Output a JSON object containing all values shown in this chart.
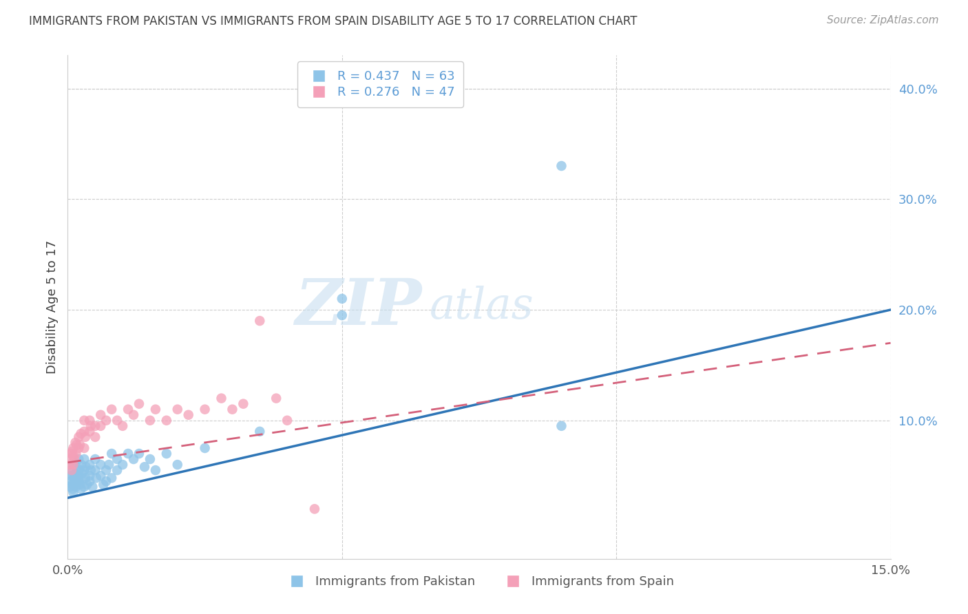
{
  "title": "IMMIGRANTS FROM PAKISTAN VS IMMIGRANTS FROM SPAIN DISABILITY AGE 5 TO 17 CORRELATION CHART",
  "source": "Source: ZipAtlas.com",
  "ylabel": "Disability Age 5 to 17",
  "y_tick_labels": [
    "10.0%",
    "20.0%",
    "30.0%",
    "40.0%"
  ],
  "y_tick_values": [
    0.1,
    0.2,
    0.3,
    0.4
  ],
  "xlim": [
    0.0,
    0.15
  ],
  "ylim": [
    -0.025,
    0.43
  ],
  "pakistan_color": "#8ec4e8",
  "spain_color": "#f4a0b8",
  "pakistan_R": 0.437,
  "pakistan_N": 63,
  "spain_R": 0.276,
  "spain_N": 47,
  "legend_label_pakistan": "Immigrants from Pakistan",
  "legend_label_spain": "Immigrants from Spain",
  "pakistan_line_x0": 0.0,
  "pakistan_line_y0": 0.03,
  "pakistan_line_x1": 0.15,
  "pakistan_line_y1": 0.2,
  "spain_line_x0": 0.0,
  "spain_line_y0": 0.062,
  "spain_line_x1": 0.15,
  "spain_line_y1": 0.17,
  "pakistan_scatter_x": [
    0.0004,
    0.0005,
    0.0006,
    0.0007,
    0.0008,
    0.0009,
    0.001,
    0.001,
    0.001,
    0.0012,
    0.0013,
    0.0014,
    0.0015,
    0.0016,
    0.0017,
    0.0018,
    0.002,
    0.002,
    0.002,
    0.0022,
    0.0023,
    0.0024,
    0.0025,
    0.0026,
    0.003,
    0.003,
    0.003,
    0.0032,
    0.0033,
    0.0035,
    0.004,
    0.004,
    0.004,
    0.0042,
    0.0045,
    0.005,
    0.005,
    0.0052,
    0.006,
    0.006,
    0.0065,
    0.007,
    0.007,
    0.0075,
    0.008,
    0.008,
    0.009,
    0.009,
    0.01,
    0.011,
    0.012,
    0.013,
    0.014,
    0.015,
    0.016,
    0.018,
    0.02,
    0.025,
    0.035,
    0.05,
    0.05,
    0.09,
    0.09
  ],
  "pakistan_scatter_y": [
    0.04,
    0.05,
    0.045,
    0.055,
    0.042,
    0.038,
    0.05,
    0.06,
    0.035,
    0.048,
    0.045,
    0.052,
    0.04,
    0.058,
    0.044,
    0.05,
    0.045,
    0.055,
    0.065,
    0.042,
    0.048,
    0.038,
    0.06,
    0.052,
    0.04,
    0.055,
    0.065,
    0.048,
    0.058,
    0.042,
    0.05,
    0.06,
    0.045,
    0.055,
    0.04,
    0.055,
    0.065,
    0.048,
    0.05,
    0.06,
    0.042,
    0.055,
    0.045,
    0.06,
    0.048,
    0.07,
    0.055,
    0.065,
    0.06,
    0.07,
    0.065,
    0.07,
    0.058,
    0.065,
    0.055,
    0.07,
    0.06,
    0.075,
    0.09,
    0.195,
    0.21,
    0.095,
    0.33
  ],
  "spain_scatter_x": [
    0.0004,
    0.0005,
    0.0006,
    0.0007,
    0.0008,
    0.001,
    0.001,
    0.001,
    0.0012,
    0.0014,
    0.0015,
    0.0016,
    0.002,
    0.002,
    0.0022,
    0.0024,
    0.003,
    0.003,
    0.003,
    0.0032,
    0.004,
    0.004,
    0.0042,
    0.005,
    0.005,
    0.006,
    0.006,
    0.007,
    0.008,
    0.009,
    0.01,
    0.011,
    0.012,
    0.013,
    0.015,
    0.016,
    0.018,
    0.02,
    0.022,
    0.025,
    0.028,
    0.03,
    0.032,
    0.035,
    0.038,
    0.04,
    0.045
  ],
  "spain_scatter_y": [
    0.06,
    0.065,
    0.07,
    0.055,
    0.072,
    0.06,
    0.075,
    0.068,
    0.065,
    0.08,
    0.07,
    0.078,
    0.075,
    0.085,
    0.078,
    0.088,
    0.075,
    0.09,
    0.1,
    0.085,
    0.09,
    0.1,
    0.095,
    0.085,
    0.095,
    0.095,
    0.105,
    0.1,
    0.11,
    0.1,
    0.095,
    0.11,
    0.105,
    0.115,
    0.1,
    0.11,
    0.1,
    0.11,
    0.105,
    0.11,
    0.12,
    0.11,
    0.115,
    0.19,
    0.12,
    0.1,
    0.02
  ],
  "watermark_zip": "ZIP",
  "watermark_atlas": "atlas",
  "background_color": "#ffffff",
  "grid_color": "#cccccc",
  "right_axis_color": "#5b9bd5",
  "title_color": "#404040",
  "source_color": "#999999"
}
